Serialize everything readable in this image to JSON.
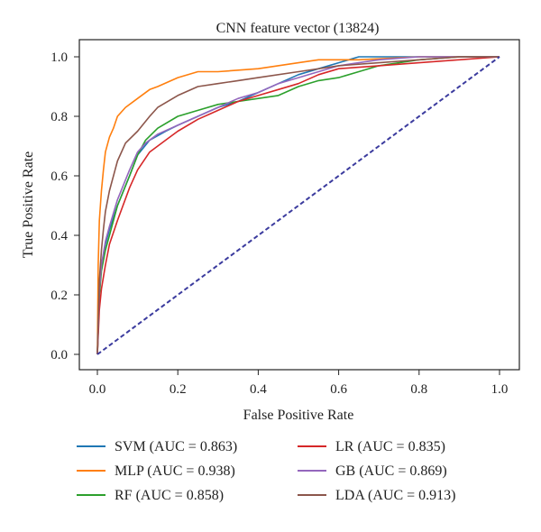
{
  "chart_data": {
    "type": "line",
    "title": "CNN feature vector (13824)",
    "xlabel": "False Positive Rate",
    "ylabel": "True Positive Rate",
    "xlim": [
      0,
      1
    ],
    "ylim": [
      0,
      1
    ],
    "xticks": [
      "0.0",
      "0.2",
      "0.4",
      "0.6",
      "0.8",
      "1.0"
    ],
    "yticks": [
      "0.0",
      "0.2",
      "0.4",
      "0.6",
      "0.8",
      "1.0"
    ],
    "grid": false,
    "legend_position": "bottom",
    "diagonal": {
      "x": [
        0,
        1
      ],
      "y": [
        0,
        1
      ],
      "color": "#3b3b9e",
      "style": "dashed"
    },
    "series": [
      {
        "name": "SVM (AUC = 0.863)",
        "color": "#1f77b4",
        "x": [
          0,
          0.005,
          0.01,
          0.02,
          0.03,
          0.05,
          0.08,
          0.1,
          0.13,
          0.17,
          0.2,
          0.25,
          0.3,
          0.35,
          0.4,
          0.45,
          0.5,
          0.55,
          0.6,
          0.65,
          0.7,
          0.8,
          0.9,
          1.0
        ],
        "y": [
          0,
          0.2,
          0.3,
          0.37,
          0.42,
          0.5,
          0.6,
          0.67,
          0.72,
          0.75,
          0.77,
          0.8,
          0.83,
          0.85,
          0.88,
          0.91,
          0.94,
          0.96,
          0.98,
          1.0,
          1.0,
          1.0,
          1.0,
          1.0
        ]
      },
      {
        "name": "MLP (AUC = 0.938)",
        "color": "#ff7f0e",
        "x": [
          0,
          0.002,
          0.005,
          0.01,
          0.015,
          0.02,
          0.03,
          0.04,
          0.05,
          0.07,
          0.1,
          0.13,
          0.15,
          0.2,
          0.25,
          0.3,
          0.4,
          0.5,
          0.55,
          0.65,
          0.8,
          0.9,
          1.0
        ],
        "y": [
          0,
          0.3,
          0.45,
          0.55,
          0.62,
          0.68,
          0.73,
          0.76,
          0.8,
          0.83,
          0.86,
          0.89,
          0.9,
          0.93,
          0.95,
          0.95,
          0.96,
          0.98,
          0.99,
          0.99,
          1.0,
          1.0,
          1.0
        ]
      },
      {
        "name": "RF (AUC = 0.858)",
        "color": "#2ca02c",
        "x": [
          0,
          0.005,
          0.01,
          0.02,
          0.03,
          0.05,
          0.08,
          0.1,
          0.12,
          0.15,
          0.2,
          0.25,
          0.3,
          0.35,
          0.4,
          0.45,
          0.5,
          0.55,
          0.6,
          0.65,
          0.7,
          0.8,
          0.9,
          1.0
        ],
        "y": [
          0,
          0.2,
          0.28,
          0.35,
          0.4,
          0.5,
          0.6,
          0.67,
          0.72,
          0.76,
          0.8,
          0.82,
          0.84,
          0.85,
          0.86,
          0.87,
          0.9,
          0.92,
          0.93,
          0.95,
          0.97,
          0.99,
          1.0,
          1.0
        ]
      },
      {
        "name": "LR (AUC = 0.835)",
        "color": "#d62728",
        "x": [
          0,
          0.005,
          0.01,
          0.02,
          0.03,
          0.05,
          0.08,
          0.1,
          0.13,
          0.17,
          0.2,
          0.25,
          0.3,
          0.35,
          0.4,
          0.45,
          0.5,
          0.55,
          0.6,
          0.7,
          0.8,
          0.9,
          1.0
        ],
        "y": [
          0,
          0.15,
          0.22,
          0.3,
          0.37,
          0.45,
          0.56,
          0.62,
          0.68,
          0.72,
          0.75,
          0.79,
          0.82,
          0.85,
          0.87,
          0.89,
          0.91,
          0.94,
          0.96,
          0.97,
          0.98,
          0.99,
          1.0
        ]
      },
      {
        "name": "GB (AUC = 0.869)",
        "color": "#9467bd",
        "x": [
          0,
          0.005,
          0.01,
          0.02,
          0.03,
          0.05,
          0.08,
          0.1,
          0.12,
          0.15,
          0.2,
          0.25,
          0.3,
          0.35,
          0.4,
          0.45,
          0.5,
          0.55,
          0.6,
          0.65,
          0.7,
          0.8,
          0.9,
          1.0
        ],
        "y": [
          0,
          0.22,
          0.3,
          0.38,
          0.43,
          0.52,
          0.62,
          0.68,
          0.71,
          0.74,
          0.77,
          0.8,
          0.83,
          0.86,
          0.88,
          0.91,
          0.93,
          0.95,
          0.97,
          0.98,
          0.99,
          1.0,
          1.0,
          1.0
        ]
      },
      {
        "name": "LDA (AUC = 0.913)",
        "color": "#8c564b",
        "x": [
          0,
          0.005,
          0.01,
          0.015,
          0.02,
          0.03,
          0.05,
          0.07,
          0.1,
          0.13,
          0.15,
          0.2,
          0.25,
          0.3,
          0.35,
          0.4,
          0.5,
          0.6,
          0.7,
          0.8,
          0.9,
          1.0
        ],
        "y": [
          0,
          0.25,
          0.35,
          0.42,
          0.48,
          0.55,
          0.65,
          0.71,
          0.75,
          0.8,
          0.83,
          0.87,
          0.9,
          0.91,
          0.92,
          0.93,
          0.95,
          0.97,
          0.98,
          0.99,
          1.0,
          1.0
        ]
      }
    ]
  }
}
